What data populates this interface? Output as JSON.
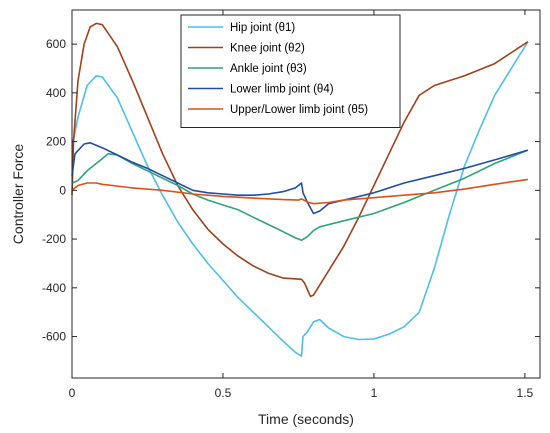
{
  "chart_data": {
    "type": "line",
    "xlabel": "Time (seconds)",
    "ylabel": "Controller Force",
    "xlim": [
      0,
      1.55
    ],
    "ylim": [
      -770,
      740
    ],
    "xticks": [
      0,
      0.5,
      1,
      1.5
    ],
    "yticks": [
      -600,
      -400,
      -200,
      0,
      200,
      400,
      600
    ],
    "grid": false,
    "legend_position": "top-center",
    "series": [
      {
        "name": "Hip joint (θ1)",
        "color": "#4DBEEE",
        "points": [
          [
            0,
            180
          ],
          [
            0.02,
            300
          ],
          [
            0.05,
            430
          ],
          [
            0.08,
            470
          ],
          [
            0.1,
            465
          ],
          [
            0.15,
            380
          ],
          [
            0.2,
            240
          ],
          [
            0.25,
            100
          ],
          [
            0.3,
            -20
          ],
          [
            0.35,
            -130
          ],
          [
            0.4,
            -220
          ],
          [
            0.45,
            -300
          ],
          [
            0.5,
            -370
          ],
          [
            0.55,
            -440
          ],
          [
            0.6,
            -500
          ],
          [
            0.65,
            -560
          ],
          [
            0.7,
            -620
          ],
          [
            0.74,
            -665
          ],
          [
            0.76,
            -680
          ],
          [
            0.765,
            -600
          ],
          [
            0.78,
            -580
          ],
          [
            0.8,
            -540
          ],
          [
            0.82,
            -530
          ],
          [
            0.85,
            -565
          ],
          [
            0.9,
            -600
          ],
          [
            0.95,
            -612
          ],
          [
            1.0,
            -610
          ],
          [
            1.05,
            -590
          ],
          [
            1.1,
            -560
          ],
          [
            1.15,
            -500
          ],
          [
            1.2,
            -320
          ],
          [
            1.25,
            -100
          ],
          [
            1.3,
            100
          ],
          [
            1.35,
            250
          ],
          [
            1.4,
            390
          ],
          [
            1.45,
            490
          ],
          [
            1.51,
            610
          ]
        ]
      },
      {
        "name": "Knee joint (θ2)",
        "color": "#A2401A",
        "points": [
          [
            0,
            -20
          ],
          [
            0.005,
            200
          ],
          [
            0.02,
            450
          ],
          [
            0.04,
            600
          ],
          [
            0.06,
            670
          ],
          [
            0.08,
            685
          ],
          [
            0.1,
            680
          ],
          [
            0.15,
            590
          ],
          [
            0.2,
            450
          ],
          [
            0.25,
            300
          ],
          [
            0.3,
            150
          ],
          [
            0.35,
            20
          ],
          [
            0.4,
            -80
          ],
          [
            0.45,
            -160
          ],
          [
            0.5,
            -220
          ],
          [
            0.55,
            -270
          ],
          [
            0.6,
            -310
          ],
          [
            0.65,
            -340
          ],
          [
            0.7,
            -360
          ],
          [
            0.76,
            -365
          ],
          [
            0.77,
            -380
          ],
          [
            0.79,
            -435
          ],
          [
            0.8,
            -430
          ],
          [
            0.85,
            -330
          ],
          [
            0.9,
            -230
          ],
          [
            0.95,
            -110
          ],
          [
            1.0,
            20
          ],
          [
            1.05,
            150
          ],
          [
            1.1,
            280
          ],
          [
            1.15,
            390
          ],
          [
            1.2,
            430
          ],
          [
            1.3,
            470
          ],
          [
            1.4,
            520
          ],
          [
            1.51,
            610
          ]
        ]
      },
      {
        "name": "Ankle joint (θ3)",
        "color": "#2EA37A",
        "points": [
          [
            0,
            30
          ],
          [
            0.02,
            40
          ],
          [
            0.05,
            80
          ],
          [
            0.1,
            130
          ],
          [
            0.12,
            150
          ],
          [
            0.15,
            145
          ],
          [
            0.2,
            110
          ],
          [
            0.3,
            50
          ],
          [
            0.35,
            20
          ],
          [
            0.4,
            -15
          ],
          [
            0.45,
            -40
          ],
          [
            0.5,
            -60
          ],
          [
            0.55,
            -80
          ],
          [
            0.6,
            -110
          ],
          [
            0.65,
            -140
          ],
          [
            0.7,
            -170
          ],
          [
            0.74,
            -195
          ],
          [
            0.76,
            -205
          ],
          [
            0.78,
            -190
          ],
          [
            0.8,
            -165
          ],
          [
            0.82,
            -150
          ],
          [
            0.9,
            -125
          ],
          [
            1.0,
            -95
          ],
          [
            1.1,
            -50
          ],
          [
            1.2,
            0
          ],
          [
            1.3,
            50
          ],
          [
            1.4,
            110
          ],
          [
            1.51,
            165
          ]
        ]
      },
      {
        "name": "Lower limb joint (θ4)",
        "color": "#1F4EA3",
        "points": [
          [
            0,
            60
          ],
          [
            0.01,
            150
          ],
          [
            0.04,
            190
          ],
          [
            0.06,
            195
          ],
          [
            0.1,
            175
          ],
          [
            0.15,
            145
          ],
          [
            0.2,
            115
          ],
          [
            0.25,
            90
          ],
          [
            0.3,
            60
          ],
          [
            0.35,
            30
          ],
          [
            0.4,
            0
          ],
          [
            0.45,
            -10
          ],
          [
            0.5,
            -15
          ],
          [
            0.55,
            -20
          ],
          [
            0.6,
            -20
          ],
          [
            0.65,
            -15
          ],
          [
            0.7,
            -5
          ],
          [
            0.74,
            10
          ],
          [
            0.76,
            30
          ],
          [
            0.765,
            -10
          ],
          [
            0.78,
            -50
          ],
          [
            0.8,
            -95
          ],
          [
            0.82,
            -85
          ],
          [
            0.85,
            -55
          ],
          [
            0.9,
            -40
          ],
          [
            1.0,
            -10
          ],
          [
            1.1,
            30
          ],
          [
            1.2,
            60
          ],
          [
            1.3,
            90
          ],
          [
            1.4,
            125
          ],
          [
            1.51,
            165
          ]
        ]
      },
      {
        "name": "Upper/Lower limb joint (θ5)",
        "color": "#D95319",
        "points": [
          [
            0,
            0
          ],
          [
            0.02,
            20
          ],
          [
            0.05,
            30
          ],
          [
            0.08,
            30
          ],
          [
            0.1,
            25
          ],
          [
            0.2,
            10
          ],
          [
            0.3,
            0
          ],
          [
            0.4,
            -15
          ],
          [
            0.5,
            -25
          ],
          [
            0.6,
            -32
          ],
          [
            0.7,
            -38
          ],
          [
            0.75,
            -40
          ],
          [
            0.76,
            -35
          ],
          [
            0.78,
            -48
          ],
          [
            0.8,
            -55
          ],
          [
            0.85,
            -50
          ],
          [
            0.9,
            -40
          ],
          [
            1.0,
            -30
          ],
          [
            1.1,
            -20
          ],
          [
            1.2,
            -10
          ],
          [
            1.3,
            5
          ],
          [
            1.4,
            25
          ],
          [
            1.51,
            45
          ]
        ]
      }
    ]
  }
}
